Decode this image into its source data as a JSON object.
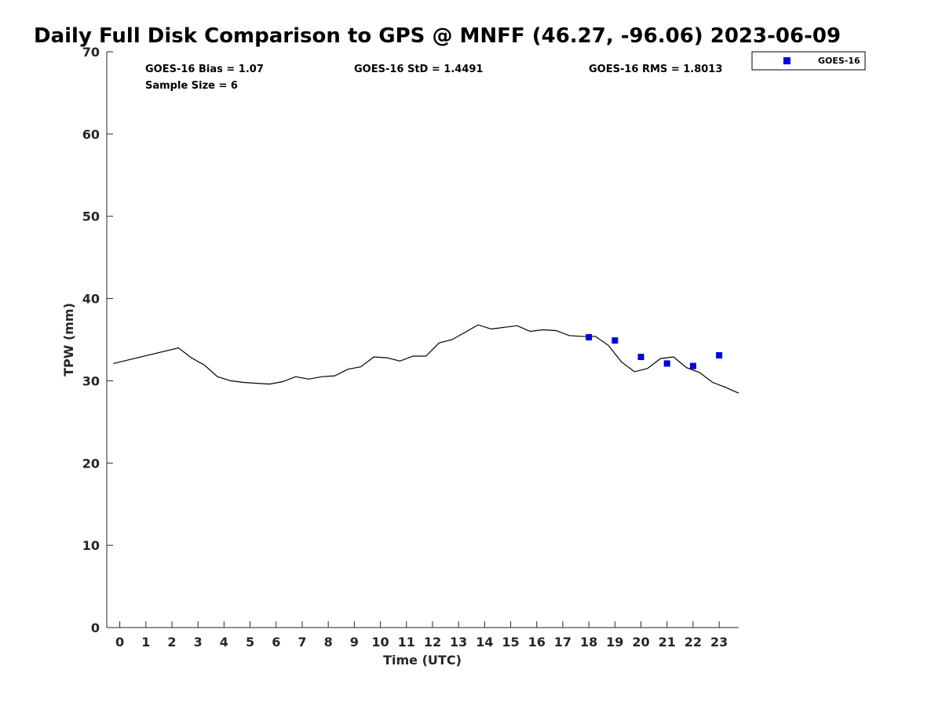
{
  "chart_data": {
    "type": "scatter",
    "title": "Daily Full Disk Comparison to GPS @ MNFF (46.27, -96.06) 2023-06-09",
    "xlabel": "Time (UTC)",
    "ylabel": "TPW (mm)",
    "xlim": [
      -0.5,
      23.75
    ],
    "ylim": [
      0,
      70
    ],
    "xticks": [
      "0",
      "1",
      "2",
      "3",
      "4",
      "5",
      "6",
      "7",
      "8",
      "9",
      "10",
      "11",
      "12",
      "13",
      "14",
      "15",
      "16",
      "17",
      "18",
      "19",
      "20",
      "21",
      "22",
      "23"
    ],
    "yticks": [
      "0",
      "10",
      "20",
      "30",
      "40",
      "50",
      "60",
      "70"
    ],
    "grid": false,
    "legend_position": "top-right-outside",
    "stats": {
      "bias": "GOES-16 Bias = 1.07",
      "std": "GOES-16 StD = 1.4491",
      "rms": "GOES-16 RMS = 1.8013",
      "sample": "Sample Size = 6"
    },
    "series": [
      {
        "kind": "line",
        "color": "#000000",
        "x": [
          -0.25,
          2.25,
          2.75,
          3.25,
          3.75,
          4.25,
          4.75,
          5.25,
          5.75,
          6.25,
          6.75,
          7.25,
          7.75,
          8.25,
          8.75,
          9.25,
          9.75,
          10.25,
          10.75,
          11.25,
          11.75,
          12.25,
          12.75,
          13.25,
          13.75,
          14.25,
          14.75,
          15.25,
          15.75,
          16.25,
          16.75,
          17.25,
          17.75,
          18.25,
          18.75,
          19.25,
          19.75,
          20.25,
          20.75,
          21.25,
          21.75,
          22.25,
          22.75,
          23.25,
          23.75
        ],
        "y": [
          32.1,
          34.0,
          32.8,
          31.9,
          30.5,
          30.0,
          29.8,
          29.7,
          29.6,
          29.9,
          30.5,
          30.2,
          30.5,
          30.6,
          31.4,
          31.7,
          32.9,
          32.8,
          32.4,
          33.0,
          33.0,
          34.6,
          35.0,
          35.9,
          36.8,
          36.3,
          36.5,
          36.7,
          36.0,
          36.2,
          36.1,
          35.5,
          35.4,
          35.4,
          34.3,
          32.3,
          31.1,
          31.5,
          32.7,
          32.9,
          31.6,
          31.0,
          29.8,
          29.2,
          28.5
        ]
      },
      {
        "kind": "scatter",
        "name": "GOES-16",
        "color": "#0000dd",
        "x": [
          18,
          19,
          20,
          21,
          22,
          23
        ],
        "y": [
          35.3,
          34.9,
          32.9,
          32.1,
          31.8,
          33.1
        ]
      }
    ]
  }
}
